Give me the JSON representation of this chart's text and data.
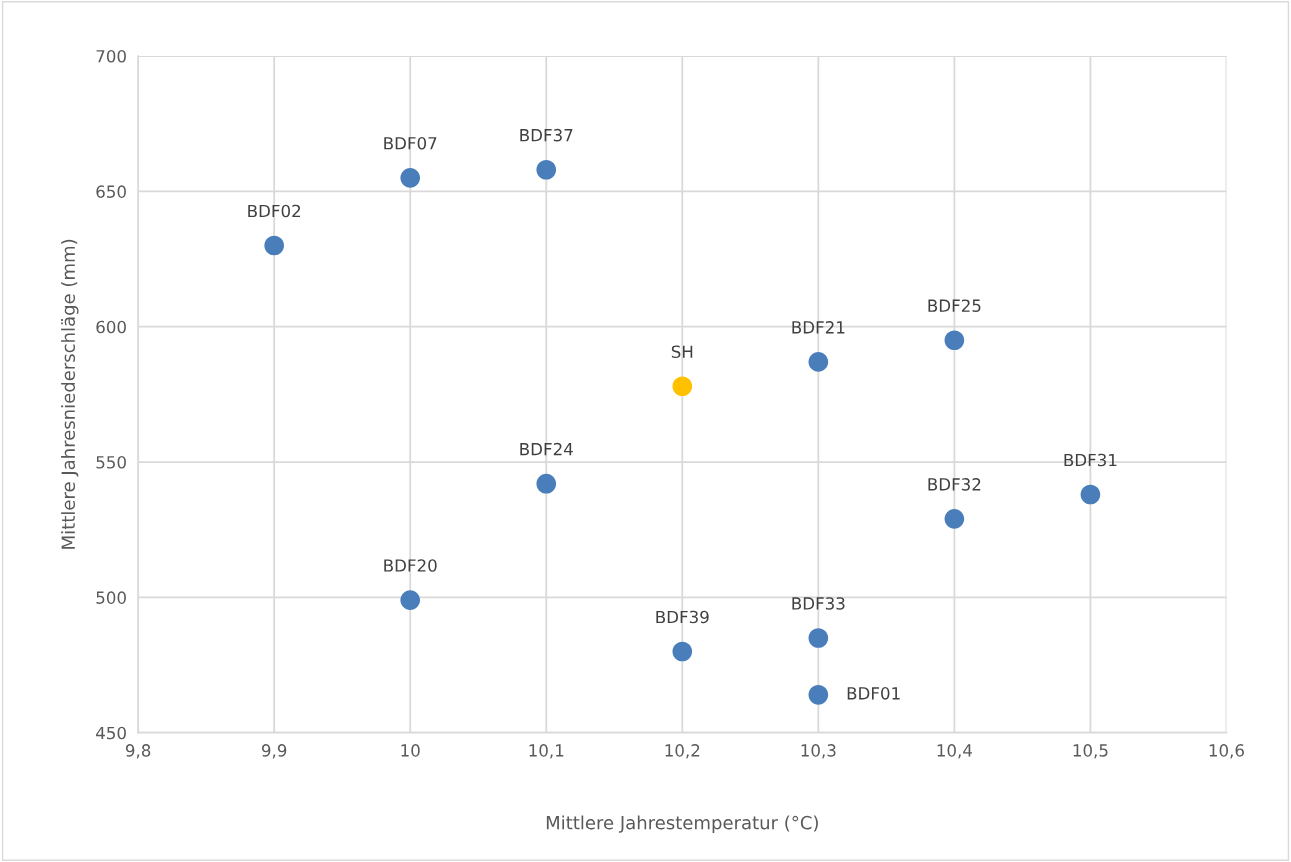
{
  "chart_data": {
    "type": "scatter",
    "xlabel": "Mittlere Jahrestemperatur (°C)",
    "ylabel": "Mittlere Jahresniederschläge (mm)",
    "x": [
      9.9,
      10.0,
      10.1,
      10.2,
      10.3,
      10.4,
      10.1,
      10.5,
      10.4,
      10.0,
      10.2,
      10.3,
      10.3
    ],
    "series": [
      {
        "colors": [
          "#4a7ebb",
          "#4a7ebb",
          "#4a7ebb",
          "#ffc000",
          "#4a7ebb",
          "#4a7ebb",
          "#4a7ebb",
          "#4a7ebb",
          "#4a7ebb",
          "#4a7ebb",
          "#4a7ebb",
          "#4a7ebb",
          "#4a7ebb"
        ],
        "values": [
          630,
          655,
          658,
          578,
          587,
          595,
          542,
          538,
          529,
          499,
          480,
          485,
          464
        ]
      }
    ],
    "annotations": [
      {
        "text": "BDF02",
        "x": 9.9,
        "y": 630
      },
      {
        "text": "BDF07",
        "x": 10.0,
        "y": 655
      },
      {
        "text": "BDF37",
        "x": 10.1,
        "y": 658
      },
      {
        "text": "SH",
        "x": 10.2,
        "y": 578
      },
      {
        "text": "BDF21",
        "x": 10.3,
        "y": 587
      },
      {
        "text": "BDF25",
        "x": 10.4,
        "y": 595
      },
      {
        "text": "BDF24",
        "x": 10.1,
        "y": 542
      },
      {
        "text": "BDF31",
        "x": 10.5,
        "y": 538
      },
      {
        "text": "BDF32",
        "x": 10.4,
        "y": 529
      },
      {
        "text": "BDF20",
        "x": 10.0,
        "y": 499
      },
      {
        "text": "BDF39",
        "x": 10.2,
        "y": 480
      },
      {
        "text": "BDF33",
        "x": 10.3,
        "y": 485
      },
      {
        "text": "BDF01",
        "x": 10.3,
        "y": 464
      }
    ],
    "xlim": [
      9.8,
      10.6
    ],
    "xticks": [
      {
        "value": 9.8,
        "label": "9,8"
      },
      {
        "value": 9.9,
        "label": "9,9"
      },
      10,
      {
        "value": 10.1,
        "label": "10,1"
      },
      {
        "value": 10.2,
        "label": "10,2"
      },
      {
        "value": 10.3,
        "label": "10,3"
      },
      {
        "value": 10.4,
        "label": "10,4"
      },
      {
        "value": 10.5,
        "label": "10,5"
      },
      {
        "value": 10.6,
        "label": "10,6"
      }
    ],
    "ylim": [
      450,
      700
    ],
    "yticks": [
      450,
      500,
      550,
      600,
      650,
      700
    ],
    "grid": true,
    "marker": "circle"
  }
}
